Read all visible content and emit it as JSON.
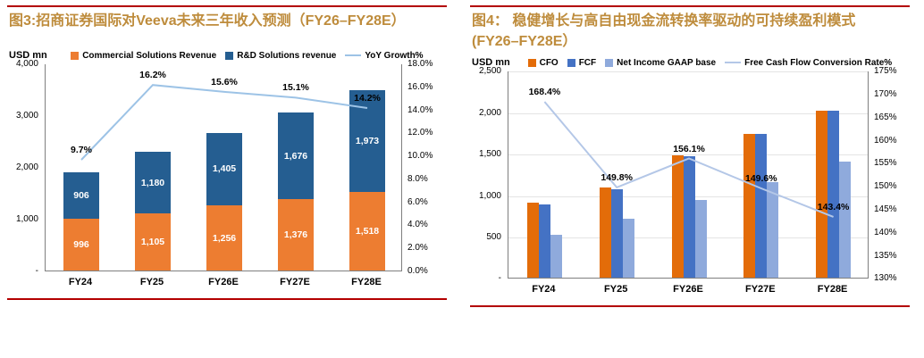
{
  "accent": {
    "rule_color": "#B30000",
    "title_color": "#BE8C3C"
  },
  "chart_data": [
    {
      "type": "bar",
      "subtype": "stacked-with-line",
      "title": "图3:招商证券国际对Veeva未来三年收入预测（FY26–FY28E）",
      "unit_label": "USD mn",
      "categories": [
        "FY24",
        "FY25",
        "FY26E",
        "FY27E",
        "FY28E"
      ],
      "series": [
        {
          "name": "Commercial Solutions Revenue",
          "type": "bar",
          "color": "#ED7D31",
          "values": [
            996,
            1105,
            1256,
            1376,
            1518
          ],
          "labels": [
            "996",
            "1,105",
            "1,256",
            "1,376",
            "1,518"
          ]
        },
        {
          "name": "R&D Solutions revenue",
          "type": "bar",
          "color": "#255E91",
          "values": [
            906,
            1180,
            1405,
            1676,
            1973
          ],
          "labels": [
            "906",
            "1,180",
            "1,405",
            "1,676",
            "1,973"
          ]
        },
        {
          "name": "YoY Growth%",
          "type": "line",
          "axis": "right",
          "color": "#9DC3E6",
          "values": [
            9.7,
            16.2,
            15.6,
            15.1,
            14.2
          ],
          "labels": [
            "9.7%",
            "16.2%",
            "15.6%",
            "15.1%",
            "14.2%"
          ]
        }
      ],
      "y_left": {
        "min": 0,
        "max": 4000,
        "step": 1000,
        "ticks": [
          "4,000",
          "3,000",
          "2,000",
          "1,000",
          "-"
        ]
      },
      "y_right": {
        "min": 0,
        "max": 18,
        "step": 2,
        "ticks": [
          "18.0%",
          "16.0%",
          "14.0%",
          "12.0%",
          "10.0%",
          "8.0%",
          "6.0%",
          "4.0%",
          "2.0%",
          "0.0%"
        ]
      },
      "grid": false,
      "legend_position": "top"
    },
    {
      "type": "bar",
      "subtype": "grouped-with-line",
      "title": "图4： 稳健增长与高自由现金流转换率驱动的可持续盈利模式(FY26–FY28E）",
      "unit_label": "USD mn",
      "categories": [
        "FY24",
        "FY25",
        "FY26E",
        "FY27E",
        "FY28E"
      ],
      "series": [
        {
          "name": "CFO",
          "type": "bar",
          "color": "#E36C09",
          "values": [
            910,
            1090,
            1480,
            1740,
            2020
          ]
        },
        {
          "name": "FCF",
          "type": "bar",
          "color": "#4472C4",
          "values": [
            885,
            1070,
            1475,
            1735,
            2020
          ]
        },
        {
          "name": "Net Income GAAP base",
          "type": "bar",
          "color": "#8FAADC",
          "values": [
            525,
            715,
            945,
            1160,
            1410
          ]
        },
        {
          "name": "Free Cash Flow Conversion Rate%",
          "type": "line",
          "axis": "right",
          "color": "#B4C7E7",
          "values": [
            168.4,
            149.8,
            156.1,
            149.6,
            143.4
          ],
          "labels": [
            "168.4%",
            "149.8%",
            "156.1%",
            "149.6%",
            "143.4%"
          ]
        }
      ],
      "y_left": {
        "min": 0,
        "max": 2500,
        "step": 500,
        "ticks": [
          "2,500",
          "2,000",
          "1,500",
          "1,000",
          "500",
          "-"
        ]
      },
      "y_right": {
        "min": 130,
        "max": 175,
        "step": 5,
        "ticks": [
          "175%",
          "170%",
          "165%",
          "160%",
          "155%",
          "150%",
          "145%",
          "140%",
          "135%",
          "130%"
        ]
      },
      "grid": true,
      "legend_position": "top"
    }
  ]
}
